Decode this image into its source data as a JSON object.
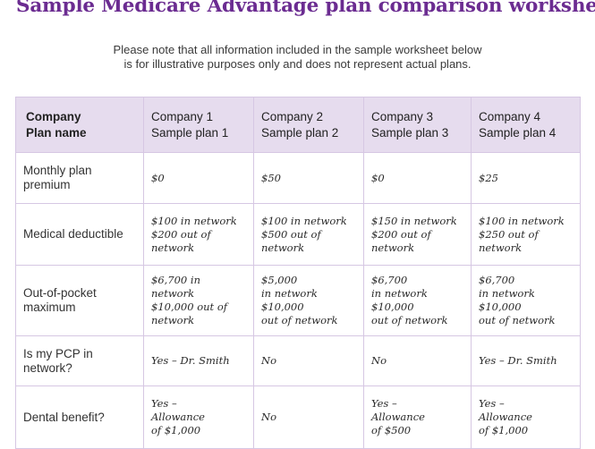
{
  "title": "Sample Medicare Advantage plan comparison worksheet",
  "note": [
    "Please note that all information included in the sample worksheet below",
    "is for illustrative purposes only and does not represent actual plans."
  ],
  "table": {
    "header": {
      "label": [
        "Company",
        "Plan name"
      ],
      "companies": [
        [
          "Company 1",
          "Sample plan 1"
        ],
        [
          "Company 2",
          "Sample plan 2"
        ],
        [
          "Company 3",
          "Sample plan 3"
        ],
        [
          "Company 4",
          "Sample plan 4"
        ]
      ]
    },
    "rows": [
      {
        "label": [
          "Monthly plan",
          "premium"
        ],
        "cells": [
          [
            "$0"
          ],
          [
            "$50"
          ],
          [
            "$0"
          ],
          [
            "$25"
          ]
        ]
      },
      {
        "label": [
          "Medical deductible"
        ],
        "cells": [
          [
            "$100 in network",
            "$200 out of",
            "network"
          ],
          [
            "$100 in network",
            "$500 out of",
            "network"
          ],
          [
            "$150 in network",
            "$200 out of",
            "network"
          ],
          [
            "$100 in network",
            "$250 out of",
            "network"
          ]
        ]
      },
      {
        "label": [
          "Out-of-pocket",
          "maximum"
        ],
        "cells": [
          [
            "$6,700 in",
            "network",
            "$10,000 out of",
            "network"
          ],
          [
            "$5,000",
            "in network",
            "$10,000",
            "out of network"
          ],
          [
            "$6,700",
            "in network",
            "$10,000",
            "out of network"
          ],
          [
            "$6,700",
            "in network",
            "$10,000",
            "out of network"
          ]
        ]
      },
      {
        "label": [
          "Is my PCP in",
          "network?"
        ],
        "cells": [
          [
            "Yes – Dr. Smith"
          ],
          [
            "No"
          ],
          [
            "No"
          ],
          [
            "Yes – Dr. Smith"
          ]
        ]
      },
      {
        "label": [
          "Dental benefit?"
        ],
        "cells": [
          [
            "Yes –",
            "Allowance",
            "of $1,000"
          ],
          [
            "No"
          ],
          [
            "Yes –",
            "Allowance",
            "of $500"
          ],
          [
            "Yes –",
            "Allowance",
            "of $1,000"
          ]
        ]
      }
    ]
  }
}
